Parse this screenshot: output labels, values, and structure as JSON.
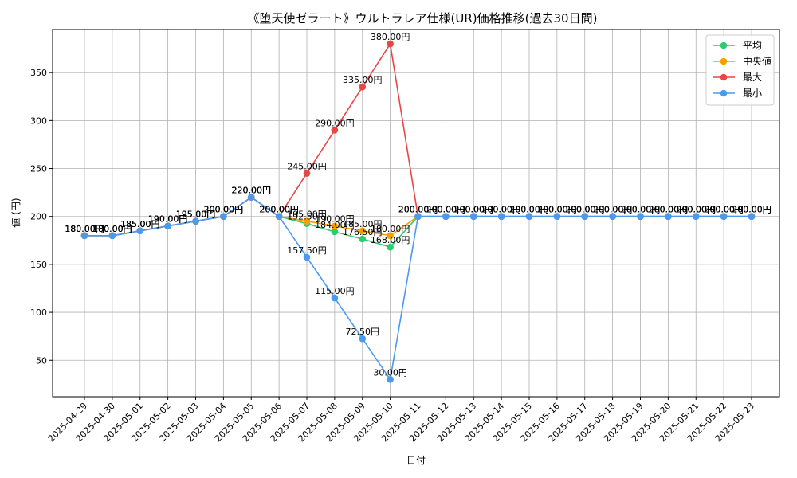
{
  "chart_data": {
    "type": "line",
    "title": "《堕天使ゼラート》ウルトラレア仕様(UR)価格推移(過去30日間)",
    "xlabel": "日付",
    "ylabel": "値 (円)",
    "ylim": [
      12,
      395
    ],
    "yticks": [
      50,
      100,
      150,
      200,
      250,
      300,
      350
    ],
    "grid": true,
    "legend_position": "top-right",
    "value_suffix": "円",
    "categories": [
      "2025-04-29",
      "2025-04-30",
      "2025-05-01",
      "2025-05-02",
      "2025-05-03",
      "2025-05-04",
      "2025-05-05",
      "2025-05-06",
      "2025-05-07",
      "2025-05-08",
      "2025-05-09",
      "2025-05-10",
      "2025-05-11",
      "2025-05-12",
      "2025-05-13",
      "2025-05-14",
      "2025-05-15",
      "2025-05-16",
      "2025-05-17",
      "2025-05-18",
      "2025-05-19",
      "2025-05-20",
      "2025-05-21",
      "2025-05-22",
      "2025-05-23"
    ],
    "series": [
      {
        "name": "平均",
        "color": "#2ecc71",
        "values": [
          180,
          180,
          185,
          190,
          195,
          200,
          220,
          200,
          192.5,
          184,
          176.5,
          168,
          200,
          200,
          200,
          200,
          200,
          200,
          200,
          200,
          200,
          200,
          200,
          200,
          200
        ]
      },
      {
        "name": "中央値",
        "color": "#f5a000",
        "values": [
          180,
          180,
          185,
          190,
          195,
          200,
          220,
          200,
          195,
          190,
          185,
          180,
          200,
          200,
          200,
          200,
          200,
          200,
          200,
          200,
          200,
          200,
          200,
          200,
          200
        ]
      },
      {
        "name": "最大",
        "color": "#e84545",
        "values": [
          180,
          180,
          185,
          190,
          195,
          200,
          220,
          200,
          245,
          290,
          335,
          380,
          200,
          200,
          200,
          200,
          200,
          200,
          200,
          200,
          200,
          200,
          200,
          200,
          200
        ]
      },
      {
        "name": "最小",
        "color": "#4a9af0",
        "values": [
          180,
          180,
          185,
          190,
          195,
          200,
          220,
          200,
          157.5,
          115,
          72.5,
          30,
          200,
          200,
          200,
          200,
          200,
          200,
          200,
          200,
          200,
          200,
          200,
          200,
          200
        ]
      }
    ]
  }
}
